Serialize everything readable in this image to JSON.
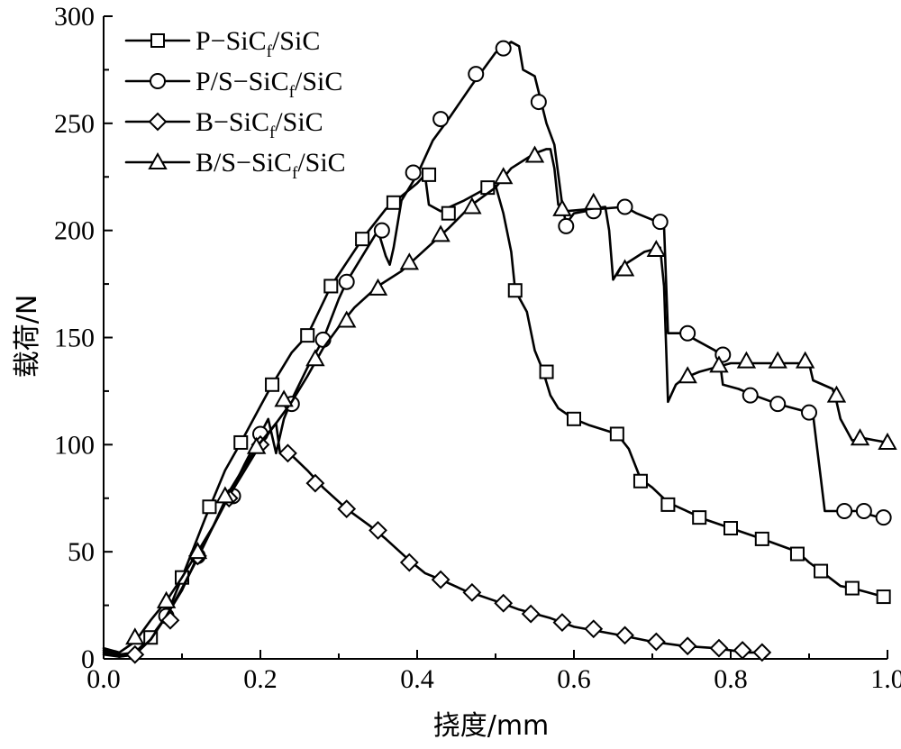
{
  "chart_data": {
    "type": "line",
    "title": "",
    "xlabel": "挠度/mm",
    "ylabel": "载荷/N",
    "xlim": [
      0.0,
      1.0
    ],
    "ylim": [
      0,
      300
    ],
    "xticks": [
      "0.0",
      "0.2",
      "0.4",
      "0.6",
      "0.8",
      "1.0"
    ],
    "yticks": [
      "0",
      "50",
      "100",
      "150",
      "200",
      "250",
      "300"
    ],
    "grid": false,
    "legend_position": "top-left",
    "series": [
      {
        "name": "P−SiCf/SiC",
        "legend_main": "P−SiC",
        "legend_sub": "f",
        "legend_tail": "/SiC",
        "marker": "square",
        "points": [
          [
            0.0,
            4
          ],
          [
            0.02,
            2
          ],
          [
            0.04,
            3
          ],
          [
            0.06,
            10
          ],
          [
            0.08,
            20
          ],
          [
            0.1,
            38
          ],
          [
            0.13,
            66
          ],
          [
            0.155,
            88
          ],
          [
            0.175,
            101
          ],
          [
            0.2,
            118
          ],
          [
            0.215,
            128
          ],
          [
            0.24,
            143
          ],
          [
            0.26,
            151
          ],
          [
            0.29,
            174
          ],
          [
            0.31,
            185
          ],
          [
            0.33,
            196
          ],
          [
            0.36,
            210
          ],
          [
            0.37,
            213
          ],
          [
            0.4,
            222
          ],
          [
            0.41,
            226
          ],
          [
            0.415,
            212
          ],
          [
            0.43,
            209
          ],
          [
            0.46,
            214
          ],
          [
            0.49,
            220
          ],
          [
            0.5,
            221
          ],
          [
            0.51,
            208
          ],
          [
            0.52,
            190
          ],
          [
            0.525,
            172
          ],
          [
            0.54,
            162
          ],
          [
            0.55,
            144
          ],
          [
            0.56,
            135
          ],
          [
            0.57,
            123
          ],
          [
            0.58,
            117
          ],
          [
            0.6,
            112
          ],
          [
            0.62,
            109
          ],
          [
            0.655,
            105
          ],
          [
            0.67,
            98
          ],
          [
            0.685,
            84
          ],
          [
            0.7,
            80
          ],
          [
            0.72,
            73
          ],
          [
            0.75,
            68
          ],
          [
            0.76,
            66
          ],
          [
            0.8,
            61
          ],
          [
            0.84,
            56
          ],
          [
            0.87,
            52
          ],
          [
            0.885,
            50
          ],
          [
            0.9,
            45
          ],
          [
            0.915,
            41
          ],
          [
            0.94,
            34
          ],
          [
            0.955,
            33
          ],
          [
            0.975,
            31
          ],
          [
            0.995,
            29
          ]
        ],
        "marker_points": [
          [
            0.06,
            10
          ],
          [
            0.1,
            38
          ],
          [
            0.135,
            71
          ],
          [
            0.175,
            101
          ],
          [
            0.215,
            128
          ],
          [
            0.26,
            151
          ],
          [
            0.29,
            174
          ],
          [
            0.33,
            196
          ],
          [
            0.37,
            213
          ],
          [
            0.415,
            226
          ],
          [
            0.44,
            208
          ],
          [
            0.49,
            220
          ],
          [
            0.525,
            172
          ],
          [
            0.565,
            134
          ],
          [
            0.6,
            112
          ],
          [
            0.655,
            105
          ],
          [
            0.685,
            83
          ],
          [
            0.72,
            72
          ],
          [
            0.76,
            66
          ],
          [
            0.8,
            61
          ],
          [
            0.84,
            56
          ],
          [
            0.885,
            49
          ],
          [
            0.915,
            41
          ],
          [
            0.955,
            33
          ],
          [
            0.995,
            29
          ]
        ]
      },
      {
        "name": "P/S−SiCf/SiC",
        "legend_main": "P/S−SiC",
        "legend_sub": "f",
        "legend_tail": "/SiC",
        "marker": "circle",
        "points": [
          [
            0.0,
            3
          ],
          [
            0.02,
            1
          ],
          [
            0.04,
            2
          ],
          [
            0.06,
            9
          ],
          [
            0.08,
            20
          ],
          [
            0.1,
            32
          ],
          [
            0.12,
            48
          ],
          [
            0.14,
            62
          ],
          [
            0.16,
            76
          ],
          [
            0.18,
            91
          ],
          [
            0.2,
            105
          ],
          [
            0.21,
            112
          ],
          [
            0.22,
            96
          ],
          [
            0.23,
            112
          ],
          [
            0.24,
            121
          ],
          [
            0.26,
            136
          ],
          [
            0.28,
            149
          ],
          [
            0.3,
            168
          ],
          [
            0.31,
            176
          ],
          [
            0.33,
            188
          ],
          [
            0.35,
            200
          ],
          [
            0.36,
            188
          ],
          [
            0.365,
            184
          ],
          [
            0.37,
            192
          ],
          [
            0.38,
            214
          ],
          [
            0.4,
            226
          ],
          [
            0.42,
            242
          ],
          [
            0.44,
            252
          ],
          [
            0.47,
            268
          ],
          [
            0.5,
            283
          ],
          [
            0.52,
            288
          ],
          [
            0.53,
            286
          ],
          [
            0.535,
            275
          ],
          [
            0.55,
            272
          ],
          [
            0.565,
            250
          ],
          [
            0.575,
            240
          ],
          [
            0.585,
            212
          ],
          [
            0.59,
            203
          ],
          [
            0.6,
            208
          ],
          [
            0.63,
            210
          ],
          [
            0.665,
            211
          ],
          [
            0.68,
            208
          ],
          [
            0.7,
            205
          ],
          [
            0.715,
            202
          ],
          [
            0.72,
            152
          ],
          [
            0.74,
            152
          ],
          [
            0.76,
            148
          ],
          [
            0.78,
            144
          ],
          [
            0.785,
            142
          ],
          [
            0.79,
            128
          ],
          [
            0.81,
            126
          ],
          [
            0.83,
            123
          ],
          [
            0.86,
            119
          ],
          [
            0.89,
            116
          ],
          [
            0.905,
            114
          ],
          [
            0.91,
            99
          ],
          [
            0.915,
            84
          ],
          [
            0.92,
            69
          ],
          [
            0.94,
            69
          ],
          [
            0.96,
            69
          ],
          [
            0.98,
            67
          ],
          [
            1.0,
            65
          ]
        ],
        "marker_points": [
          [
            0.08,
            20
          ],
          [
            0.12,
            48
          ],
          [
            0.165,
            76
          ],
          [
            0.2,
            105
          ],
          [
            0.24,
            119
          ],
          [
            0.28,
            149
          ],
          [
            0.31,
            176
          ],
          [
            0.355,
            200
          ],
          [
            0.395,
            227
          ],
          [
            0.43,
            252
          ],
          [
            0.475,
            273
          ],
          [
            0.51,
            285
          ],
          [
            0.555,
            260
          ],
          [
            0.59,
            202
          ],
          [
            0.625,
            209
          ],
          [
            0.665,
            211
          ],
          [
            0.71,
            204
          ],
          [
            0.745,
            152
          ],
          [
            0.79,
            142
          ],
          [
            0.825,
            123
          ],
          [
            0.86,
            119
          ],
          [
            0.9,
            115
          ],
          [
            0.945,
            69
          ],
          [
            0.97,
            69
          ],
          [
            0.995,
            66
          ]
        ]
      },
      {
        "name": "B−SiCf/SiC",
        "legend_main": "B−SiC",
        "legend_sub": "f",
        "legend_tail": "/SiC",
        "marker": "diamond",
        "points": [
          [
            0.0,
            2
          ],
          [
            0.02,
            1
          ],
          [
            0.04,
            2
          ],
          [
            0.06,
            9
          ],
          [
            0.08,
            20
          ],
          [
            0.1,
            33
          ],
          [
            0.12,
            47
          ],
          [
            0.14,
            62
          ],
          [
            0.16,
            76
          ],
          [
            0.18,
            88
          ],
          [
            0.2,
            100
          ],
          [
            0.22,
            110
          ],
          [
            0.225,
            96
          ],
          [
            0.24,
            95
          ],
          [
            0.26,
            88
          ],
          [
            0.28,
            80
          ],
          [
            0.31,
            70
          ],
          [
            0.34,
            62
          ],
          [
            0.36,
            56
          ],
          [
            0.39,
            46
          ],
          [
            0.41,
            40
          ],
          [
            0.43,
            37
          ],
          [
            0.46,
            32
          ],
          [
            0.5,
            27
          ],
          [
            0.53,
            23
          ],
          [
            0.57,
            19
          ],
          [
            0.6,
            15
          ],
          [
            0.63,
            13
          ],
          [
            0.66,
            11
          ],
          [
            0.7,
            8
          ],
          [
            0.74,
            6
          ],
          [
            0.78,
            5
          ],
          [
            0.82,
            3
          ],
          [
            0.84,
            3
          ]
        ],
        "marker_points": [
          [
            0.04,
            2
          ],
          [
            0.085,
            18
          ],
          [
            0.12,
            48
          ],
          [
            0.16,
            75
          ],
          [
            0.2,
            100
          ],
          [
            0.235,
            96
          ],
          [
            0.27,
            82
          ],
          [
            0.31,
            70
          ],
          [
            0.35,
            60
          ],
          [
            0.39,
            45
          ],
          [
            0.43,
            37
          ],
          [
            0.47,
            31
          ],
          [
            0.51,
            26
          ],
          [
            0.545,
            21
          ],
          [
            0.585,
            17
          ],
          [
            0.625,
            14
          ],
          [
            0.665,
            11
          ],
          [
            0.705,
            8
          ],
          [
            0.745,
            6
          ],
          [
            0.785,
            5
          ],
          [
            0.815,
            4
          ],
          [
            0.84,
            3
          ]
        ]
      },
      {
        "name": "B/S−SiCf/SiC",
        "legend_main": "B/S−SiC",
        "legend_sub": "f",
        "legend_tail": "/SiC",
        "marker": "triangle",
        "points": [
          [
            0.0,
            5
          ],
          [
            0.02,
            3
          ],
          [
            0.04,
            8
          ],
          [
            0.06,
            18
          ],
          [
            0.08,
            27
          ],
          [
            0.1,
            38
          ],
          [
            0.12,
            50
          ],
          [
            0.14,
            62
          ],
          [
            0.16,
            78
          ],
          [
            0.18,
            90
          ],
          [
            0.2,
            101
          ],
          [
            0.22,
            110
          ],
          [
            0.24,
            120
          ],
          [
            0.26,
            132
          ],
          [
            0.28,
            145
          ],
          [
            0.3,
            155
          ],
          [
            0.32,
            164
          ],
          [
            0.35,
            174
          ],
          [
            0.38,
            181
          ],
          [
            0.41,
            191
          ],
          [
            0.44,
            201
          ],
          [
            0.47,
            212
          ],
          [
            0.5,
            220
          ],
          [
            0.52,
            229
          ],
          [
            0.55,
            236
          ],
          [
            0.565,
            238
          ],
          [
            0.57,
            238
          ],
          [
            0.575,
            229
          ],
          [
            0.58,
            212
          ],
          [
            0.59,
            209
          ],
          [
            0.62,
            210
          ],
          [
            0.64,
            211
          ],
          [
            0.645,
            200
          ],
          [
            0.65,
            177
          ],
          [
            0.66,
            183
          ],
          [
            0.69,
            190
          ],
          [
            0.71,
            192
          ],
          [
            0.715,
            174
          ],
          [
            0.72,
            120
          ],
          [
            0.73,
            128
          ],
          [
            0.74,
            131
          ],
          [
            0.76,
            134
          ],
          [
            0.78,
            136
          ],
          [
            0.8,
            138
          ],
          [
            0.83,
            138
          ],
          [
            0.86,
            138
          ],
          [
            0.88,
            138
          ],
          [
            0.9,
            138
          ],
          [
            0.905,
            130
          ],
          [
            0.93,
            126
          ],
          [
            0.935,
            120
          ],
          [
            0.94,
            112
          ],
          [
            0.955,
            102
          ],
          [
            0.97,
            103
          ],
          [
            0.985,
            102
          ],
          [
            1.0,
            101
          ]
        ],
        "marker_points": [
          [
            0.04,
            10
          ],
          [
            0.08,
            27
          ],
          [
            0.12,
            50
          ],
          [
            0.155,
            76
          ],
          [
            0.195,
            99
          ],
          [
            0.23,
            121
          ],
          [
            0.27,
            140
          ],
          [
            0.31,
            158
          ],
          [
            0.35,
            173
          ],
          [
            0.39,
            185
          ],
          [
            0.43,
            198
          ],
          [
            0.47,
            211
          ],
          [
            0.51,
            225
          ],
          [
            0.55,
            235
          ],
          [
            0.585,
            210
          ],
          [
            0.625,
            213
          ],
          [
            0.665,
            182
          ],
          [
            0.705,
            191
          ],
          [
            0.745,
            132
          ],
          [
            0.785,
            137
          ],
          [
            0.82,
            139
          ],
          [
            0.86,
            139
          ],
          [
            0.895,
            139
          ],
          [
            0.935,
            123
          ],
          [
            0.965,
            103
          ],
          [
            1.0,
            101
          ]
        ]
      }
    ]
  }
}
